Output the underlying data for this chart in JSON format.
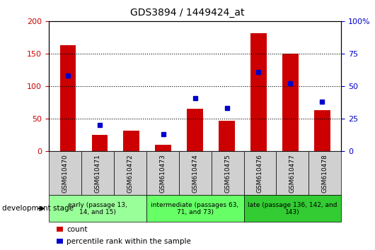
{
  "title": "GDS3894 / 1449424_at",
  "samples": [
    "GSM610470",
    "GSM610471",
    "GSM610472",
    "GSM610473",
    "GSM610474",
    "GSM610475",
    "GSM610476",
    "GSM610477",
    "GSM610478"
  ],
  "counts": [
    163,
    25,
    32,
    10,
    65,
    47,
    182,
    150,
    63
  ],
  "percentile_ranks": [
    58,
    20,
    null,
    13,
    41,
    33,
    61,
    52,
    38
  ],
  "ylim_left": [
    0,
    200
  ],
  "ylim_right": [
    0,
    100
  ],
  "yticks_left": [
    0,
    50,
    100,
    150,
    200
  ],
  "yticks_right": [
    0,
    25,
    50,
    75,
    100
  ],
  "bar_color": "#cc0000",
  "dot_color": "#0000cc",
  "stage_groups": [
    {
      "label": "early (passage 13,\n14, and 15)",
      "indices": [
        0,
        1,
        2
      ],
      "color": "#99ff99"
    },
    {
      "label": "intermediate (passages 63,\n71, and 73)",
      "indices": [
        3,
        4,
        5
      ],
      "color": "#66ff66"
    },
    {
      "label": "late (passage 136, 142, and\n143)",
      "indices": [
        6,
        7,
        8
      ],
      "color": "#33cc33"
    }
  ],
  "legend_count_label": "count",
  "legend_percentile_label": "percentile rank within the sample",
  "dev_stage_label": "development stage",
  "left_ylabel_color": "#cc0000",
  "right_ylabel_color": "#0000cc",
  "gray_cell": "#d0d0d0"
}
